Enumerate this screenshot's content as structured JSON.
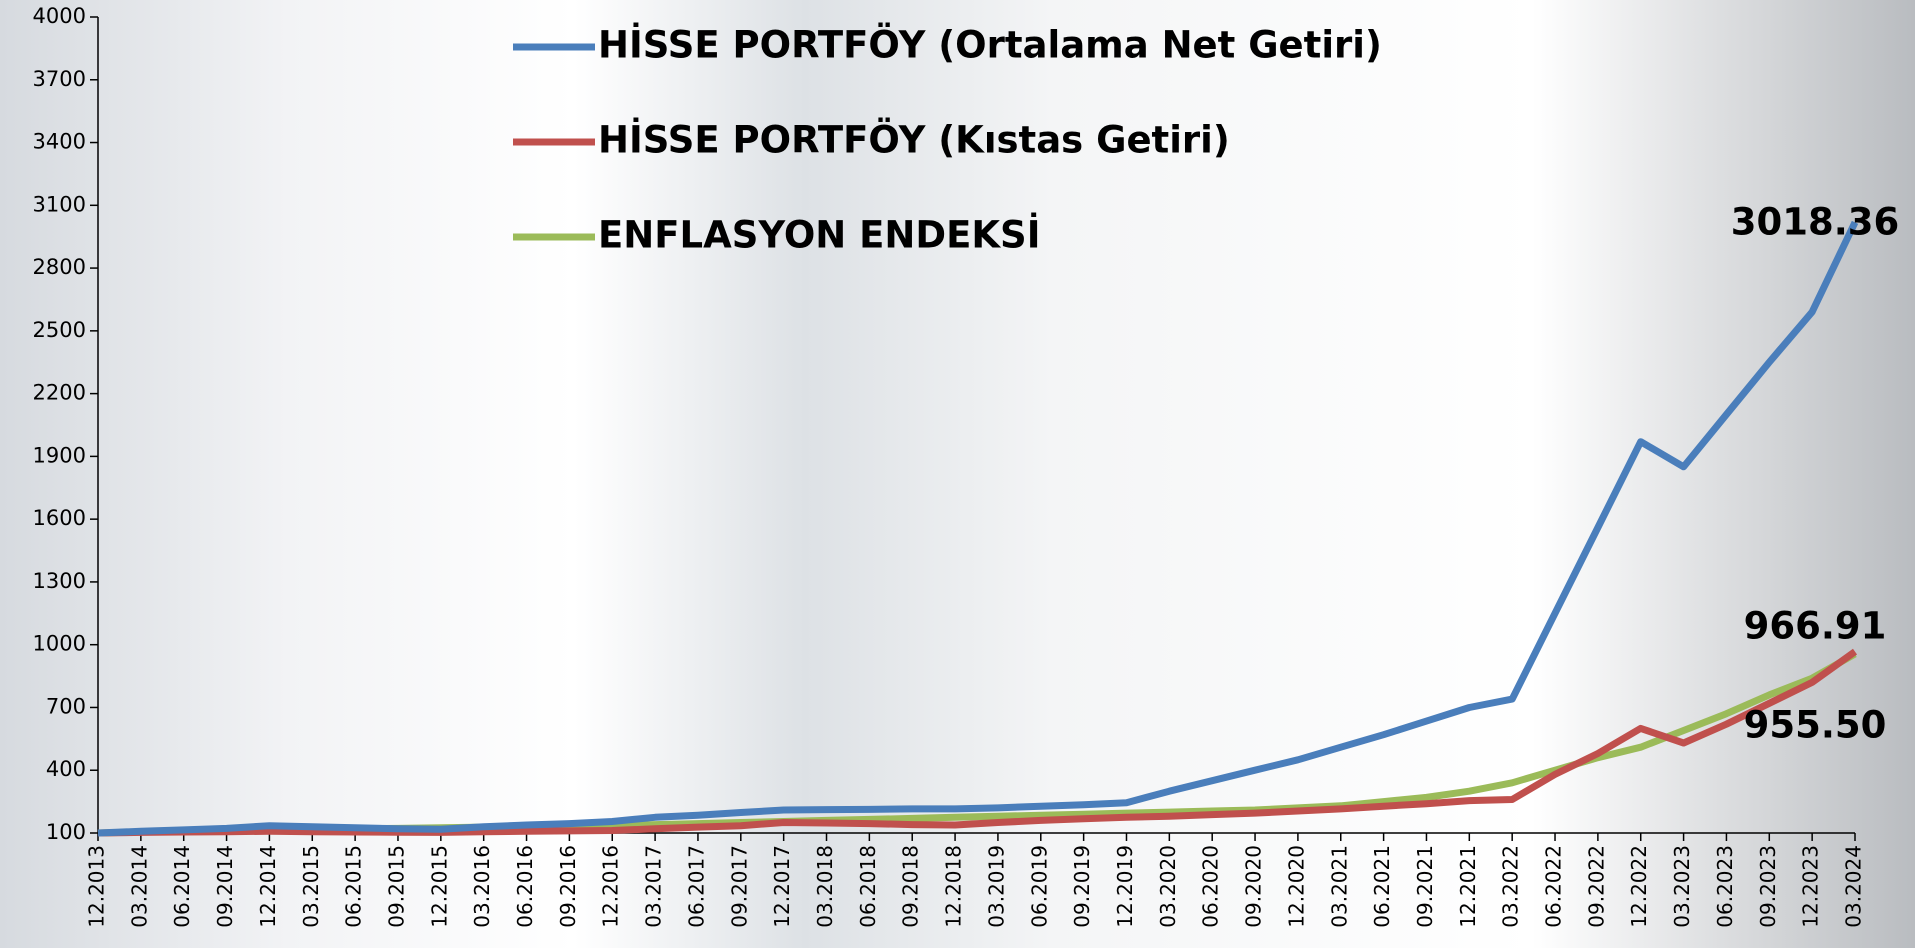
{
  "chart_data": {
    "type": "line",
    "categories": [
      "12.2013",
      "03.2014",
      "06.2014",
      "09.2014",
      "12.2014",
      "03.2015",
      "06.2015",
      "09.2015",
      "12.2015",
      "03.2016",
      "06.2016",
      "09.2016",
      "12.2016",
      "03.2017",
      "06.2017",
      "09.2017",
      "12.2017",
      "03.2018",
      "06.2018",
      "09.2018",
      "12.2018",
      "03.2019",
      "06.2019",
      "09.2019",
      "12.2019",
      "03.2020",
      "06.2020",
      "09.2020",
      "12.2020",
      "03.2021",
      "06.2021",
      "09.2021",
      "12.2021",
      "03.2022",
      "06.2022",
      "09.2022",
      "12.2022",
      "03.2023",
      "06.2023",
      "09.2023",
      "12.2023",
      "03.2024"
    ],
    "series": [
      {
        "name": "HİSSE PORTFÖY (Ortalama Net Getiri)",
        "color": "#4a7ebb",
        "values": [
          100,
          108,
          115,
          122,
          135,
          130,
          125,
          120,
          118,
          130,
          138,
          145,
          155,
          175,
          185,
          198,
          210,
          212,
          213,
          215,
          215,
          220,
          228,
          235,
          245,
          300,
          350,
          400,
          450,
          510,
          570,
          635,
          700,
          740,
          1150,
          1560,
          1970,
          1850,
          2100,
          2350,
          2590,
          3018.36
        ],
        "value_labels": [
          null,
          null,
          null,
          null,
          null,
          null,
          null,
          null,
          null,
          null,
          null,
          null,
          null,
          null,
          null,
          null,
          null,
          null,
          null,
          null,
          null,
          null,
          null,
          null,
          null,
          null,
          null,
          null,
          null,
          null,
          null,
          null,
          null,
          null,
          null,
          null,
          null,
          null,
          null,
          null,
          null,
          "3018.36"
        ]
      },
      {
        "name": "HİSSE PORTFÖY (Kıstas Getiri)",
        "color": "#c0504d",
        "values": [
          100,
          103,
          105,
          106,
          108,
          106,
          105,
          104,
          103,
          106,
          108,
          110,
          112,
          120,
          128,
          135,
          150,
          148,
          145,
          140,
          138,
          150,
          160,
          168,
          175,
          180,
          188,
          195,
          205,
          215,
          228,
          240,
          255,
          260,
          380,
          480,
          600,
          530,
          620,
          720,
          820,
          966.91
        ],
        "value_labels": [
          null,
          null,
          null,
          null,
          null,
          null,
          null,
          null,
          null,
          null,
          null,
          null,
          null,
          null,
          null,
          null,
          null,
          null,
          null,
          null,
          null,
          null,
          null,
          null,
          null,
          null,
          null,
          null,
          null,
          null,
          null,
          null,
          null,
          null,
          null,
          null,
          null,
          null,
          null,
          null,
          null,
          "966.91"
        ]
      },
      {
        "name": "ENFLASYON ENDEKSİ",
        "color": "#9bbb59",
        "values": [
          100,
          105,
          110,
          112,
          115,
          118,
          120,
          122,
          125,
          128,
          130,
          133,
          135,
          140,
          145,
          150,
          155,
          160,
          165,
          170,
          175,
          180,
          185,
          190,
          195,
          200,
          205,
          210,
          220,
          230,
          250,
          270,
          300,
          340,
          400,
          460,
          510,
          590,
          670,
          760,
          840,
          955.5
        ],
        "value_labels": [
          null,
          null,
          null,
          null,
          null,
          null,
          null,
          null,
          null,
          null,
          null,
          null,
          null,
          null,
          null,
          null,
          null,
          null,
          null,
          null,
          null,
          null,
          null,
          null,
          null,
          null,
          null,
          null,
          null,
          null,
          null,
          null,
          null,
          null,
          null,
          null,
          null,
          null,
          null,
          null,
          null,
          "955.50"
        ]
      }
    ],
    "ylim": [
      100,
      4000
    ],
    "yticks": [
      100,
      400,
      700,
      1000,
      1300,
      1600,
      1900,
      2200,
      2500,
      2800,
      3100,
      3400,
      3700,
      4000
    ],
    "grid": false
  }
}
